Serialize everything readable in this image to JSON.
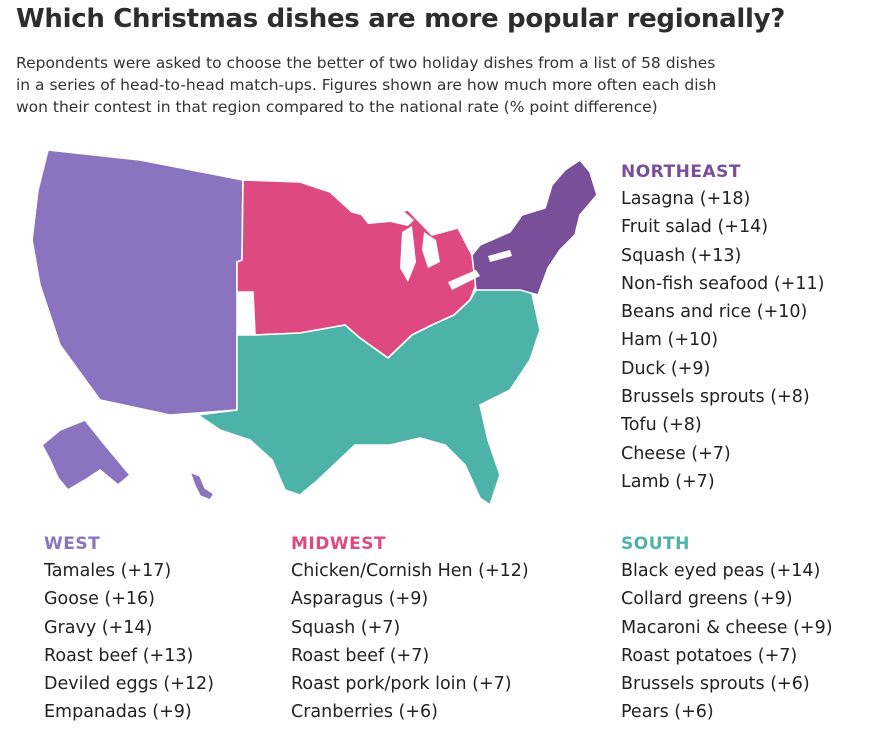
{
  "title": "Which Christmas dishes are more popular regionally?",
  "subtitle_lines": [
    "Repondents were asked to choose the better of two holiday dishes from a list of 58 dishes",
    "in a series of head-to-head match-ups. Figures shown are how much more often each dish",
    "won their contest in that region compared to the national rate (% point difference)"
  ],
  "colors": {
    "west": "#8a74bf",
    "midwest": "#dd4980",
    "south": "#4db2a8",
    "northeast": "#7a4f9a",
    "border": "#ffffff"
  },
  "regions": {
    "northeast": {
      "name": "NORTHEAST",
      "items": [
        "Lasagna (+18)",
        "Fruit salad (+14)",
        "Squash (+13)",
        "Non-fish seafood (+11)",
        "Beans and rice (+10)",
        "Ham (+10)",
        "Duck (+9)",
        "Brussels sprouts (+8)",
        "Tofu (+8)",
        "Cheese (+7)",
        "Lamb (+7)"
      ]
    },
    "west": {
      "name": "WEST",
      "items": [
        "Tamales (+17)",
        "Goose (+16)",
        "Gravy (+14)",
        "Roast beef (+13)",
        "Deviled eggs (+12)",
        "Empanadas (+9)"
      ]
    },
    "midwest": {
      "name": "MIDWEST",
      "items": [
        "Chicken/Cornish Hen (+12)",
        "Asparagus (+9)",
        "Squash (+7)",
        "Roast beef (+7)",
        "Roast pork/pork loin (+7)",
        "Cranberries (+6)"
      ]
    },
    "south": {
      "name": "SOUTH",
      "items": [
        "Black eyed peas (+14)",
        "Collard greens (+9)",
        "Macaroni & cheese (+9)",
        "Roast potatoes (+7)",
        "Brussels sprouts (+6)",
        "Pears (+6)"
      ]
    }
  }
}
